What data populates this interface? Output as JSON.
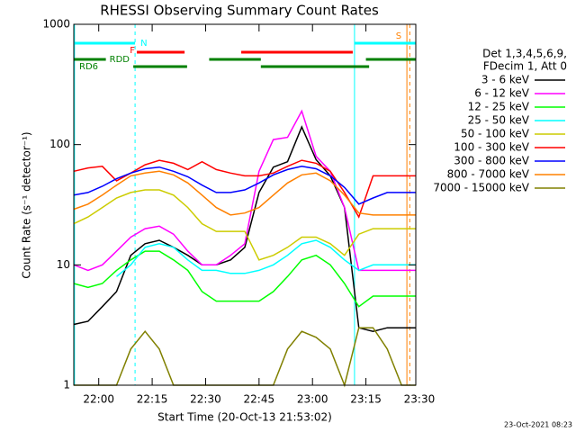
{
  "chart_data": {
    "type": "line",
    "title": "RHESSI Observing Summary Count Rates",
    "x_label": "Start Time (20-Oct-13 21:53:02)",
    "y_label": "Count Rate (s⁻¹ detector⁻¹)",
    "stamp": "23-Oct-2021 08:23",
    "legend_header": [
      "Det 1,3,4,5,6,9,",
      "FDecim 1, Att 0"
    ],
    "log_y": true,
    "xlim": [
      1313,
      1409
    ],
    "ylim": [
      1,
      1000
    ],
    "yticks": [
      1,
      10,
      100,
      1000
    ],
    "xticks": [
      {
        "value": 1320,
        "label": "22:00"
      },
      {
        "value": 1335,
        "label": "22:15"
      },
      {
        "value": 1350,
        "label": "22:30"
      },
      {
        "value": 1365,
        "label": "22:45"
      },
      {
        "value": 1380,
        "label": "23:00"
      },
      {
        "value": 1395,
        "label": "23:15"
      },
      {
        "value": 1410,
        "label": "23:30"
      }
    ],
    "x": [
      1313,
      1317,
      1321,
      1325,
      1329,
      1333,
      1337,
      1341,
      1345,
      1349,
      1353,
      1357,
      1361,
      1365,
      1369,
      1373,
      1377,
      1381,
      1385,
      1389,
      1393,
      1397,
      1401,
      1405,
      1409
    ],
    "series": [
      {
        "name": "3 - 6 keV",
        "color": "#000000",
        "values": [
          3.2,
          3.4,
          4.5,
          6,
          12,
          15,
          16,
          14,
          12,
          10,
          10,
          11,
          14,
          40,
          65,
          72,
          140,
          75,
          55,
          30,
          3,
          2.8,
          3,
          3,
          3
        ]
      },
      {
        "name": "6 - 12 keV",
        "color": "#ff00ff",
        "values": [
          10,
          9,
          10,
          13,
          17,
          20,
          21,
          18,
          13,
          10,
          10,
          12,
          15,
          60,
          110,
          115,
          190,
          80,
          60,
          30,
          9,
          9,
          9,
          9,
          9
        ]
      },
      {
        "name": "12 - 25 keV",
        "color": "#00ff00",
        "values": [
          7,
          6.5,
          7,
          9,
          11,
          13,
          13,
          11,
          9,
          6,
          5,
          5,
          5,
          5,
          6,
          8,
          11,
          12,
          10,
          7,
          4.5,
          5.5,
          5.5,
          5.5,
          5.5
        ]
      },
      {
        "name": "25 - 50 keV",
        "color": "#00ffff",
        "values": [
          null,
          null,
          null,
          8,
          10,
          14,
          15,
          14,
          11,
          9,
          9,
          8.5,
          8.5,
          9,
          10,
          12,
          15,
          16,
          14,
          11,
          9,
          10,
          10,
          10,
          10
        ]
      },
      {
        "name": "50 - 100 keV",
        "color": "#cccc00",
        "values": [
          22,
          25,
          30,
          36,
          40,
          42,
          42,
          38,
          30,
          22,
          19,
          19,
          19,
          11,
          12,
          14,
          17,
          17,
          15,
          12,
          18,
          20,
          20,
          20,
          20
        ]
      },
      {
        "name": "100 - 300 keV",
        "color": "#ff0000",
        "values": [
          60,
          64,
          66,
          50,
          58,
          68,
          74,
          70,
          62,
          72,
          62,
          58,
          55,
          55,
          58,
          66,
          74,
          70,
          60,
          40,
          25,
          55,
          55,
          55,
          55
        ]
      },
      {
        "name": "300 - 800 keV",
        "color": "#0000ff",
        "values": [
          38,
          40,
          45,
          52,
          58,
          63,
          65,
          60,
          54,
          46,
          40,
          40,
          42,
          48,
          56,
          62,
          66,
          63,
          55,
          44,
          32,
          36,
          40,
          40,
          40
        ]
      },
      {
        "name": "800 - 7000 keV",
        "color": "#ff8000",
        "values": [
          29,
          32,
          38,
          46,
          55,
          58,
          60,
          56,
          48,
          38,
          30,
          26,
          27,
          30,
          38,
          48,
          56,
          58,
          50,
          38,
          27,
          26,
          26,
          26,
          26
        ]
      },
      {
        "name": "7000 - 15000 keV",
        "color": "#808000",
        "values": [
          1,
          1,
          1,
          1,
          2,
          2.8,
          2,
          1,
          1,
          1,
          1,
          1,
          1,
          1,
          1,
          2,
          2.8,
          2.5,
          2,
          1,
          3,
          3,
          2,
          1,
          1
        ]
      }
    ],
    "flags": [
      {
        "label": "N",
        "color": "#00ffff",
        "segments": [
          [
            1313,
            1330.2
          ],
          [
            1391.8,
            1409
          ]
        ]
      },
      {
        "label": "F",
        "color": "#ff0000",
        "segments": [
          [
            1330.7,
            1344.1
          ],
          [
            1360,
            1391.3
          ]
        ]
      },
      {
        "label": "RDD",
        "color": "#008000",
        "segments": [
          [
            1313,
            1322
          ],
          [
            1351,
            1365.5
          ],
          [
            1395,
            1409
          ]
        ]
      },
      {
        "label": "RD6",
        "color": "#008000",
        "segments": [
          [
            1329.7,
            1344.8
          ],
          [
            1365.5,
            1395.9
          ]
        ]
      },
      {
        "label": "S",
        "color": "#ff8000",
        "segments": []
      }
    ],
    "vlines": [
      {
        "x": 1313.2,
        "color": "#00ffff",
        "dashed": false
      },
      {
        "x": 1330.2,
        "color": "#00ffff",
        "dashed": true
      },
      {
        "x": 1391.8,
        "color": "#00ffff",
        "dashed": false
      },
      {
        "x": 1409,
        "color": "#00ffff",
        "dashed": true
      },
      {
        "x": 1406.5,
        "color": "#ff8000",
        "dashed": false
      },
      {
        "x": 1407.3,
        "color": "#ff8000",
        "dashed": true
      }
    ]
  }
}
